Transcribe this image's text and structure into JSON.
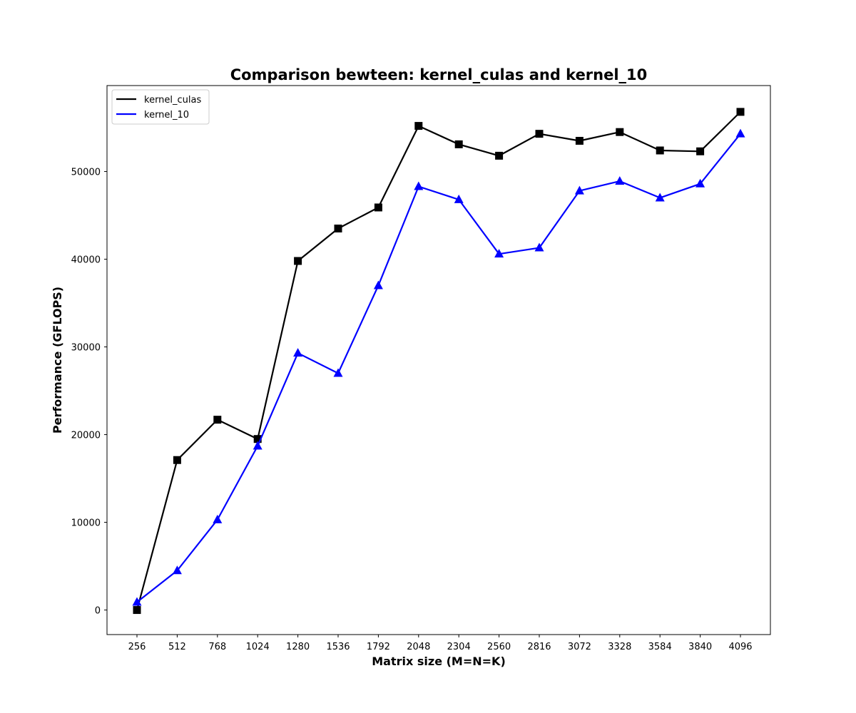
{
  "chart_data": {
    "type": "line",
    "title": "Comparison bewteen: kernel_culas and kernel_10",
    "xlabel": "Matrix size (M=N=K)",
    "ylabel": "Performance (GFLOPS)",
    "x": [
      256,
      512,
      768,
      1024,
      1280,
      1536,
      1792,
      2048,
      2304,
      2560,
      2816,
      3072,
      3328,
      3584,
      3840,
      4096
    ],
    "yticks": [
      0,
      10000,
      20000,
      30000,
      40000,
      50000
    ],
    "ylim": [
      -2800,
      59800
    ],
    "grid": false,
    "legend_position": "upper-left",
    "series": [
      {
        "name": "kernel_culas",
        "color": "#000000",
        "marker": "square",
        "values": [
          0,
          17100,
          21700,
          19500,
          39800,
          43500,
          45900,
          55200,
          53100,
          51800,
          54300,
          53500,
          54500,
          52400,
          52300,
          56800
        ]
      },
      {
        "name": "kernel_10",
        "color": "#0000ff",
        "marker": "triangle",
        "values": [
          900,
          4500,
          10300,
          18700,
          29300,
          27000,
          37000,
          48300,
          46800,
          40600,
          41300,
          47800,
          48900,
          47000,
          48600,
          54300
        ]
      }
    ]
  }
}
